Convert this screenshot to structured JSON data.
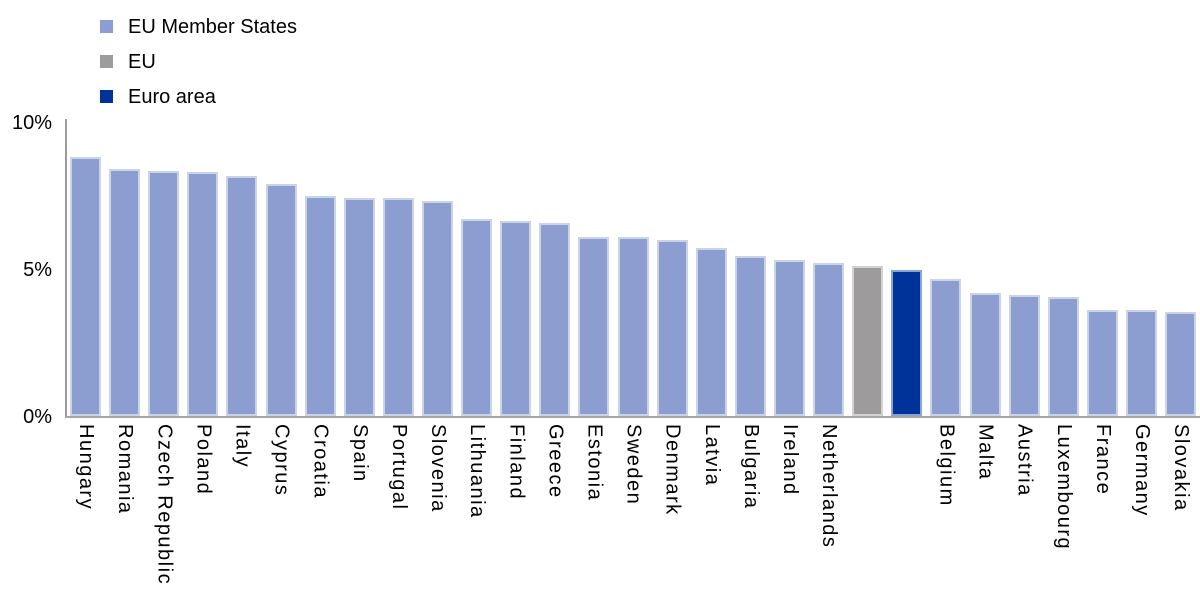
{
  "chart_data": {
    "type": "bar",
    "title": "",
    "xlabel": "",
    "ylabel": "",
    "unit": "%",
    "ylim": [
      0,
      10
    ],
    "grid": false,
    "legend_position": "top-left",
    "yticks": [
      {
        "value": 10,
        "label": "10%"
      },
      {
        "value": 5,
        "label": "5%"
      },
      {
        "value": 0,
        "label": "0%"
      }
    ],
    "series": [
      {
        "id": "member",
        "label": "EU Member States",
        "color": "#8C9ECF"
      },
      {
        "id": "eu",
        "label": "EU",
        "color": "#9D9B9B"
      },
      {
        "id": "euro_area",
        "label": "Euro area",
        "color": "#003399"
      }
    ],
    "bars": [
      {
        "name": "Hungary",
        "axis_label": "Hungary",
        "value": 8.8,
        "series": "member"
      },
      {
        "name": "Romania",
        "axis_label": "Romania",
        "value": 8.4,
        "series": "member"
      },
      {
        "name": "Czech Republic",
        "axis_label": "Czech Republic",
        "value": 8.35,
        "series": "member"
      },
      {
        "name": "Poland",
        "axis_label": "Poland",
        "value": 8.3,
        "series": "member"
      },
      {
        "name": "Italy",
        "axis_label": "Italy",
        "value": 8.15,
        "series": "member"
      },
      {
        "name": "Cyprus",
        "axis_label": "Cyprus",
        "value": 7.9,
        "series": "member"
      },
      {
        "name": "Croatia",
        "axis_label": "Croatia",
        "value": 7.5,
        "series": "member"
      },
      {
        "name": "Spain",
        "axis_label": "Spain",
        "value": 7.4,
        "series": "member"
      },
      {
        "name": "Portugal",
        "axis_label": "Portugal",
        "value": 7.4,
        "series": "member"
      },
      {
        "name": "Slovenia",
        "axis_label": "Slovenia",
        "value": 7.3,
        "series": "member"
      },
      {
        "name": "Lithuania",
        "axis_label": "Lithuania",
        "value": 6.7,
        "series": "member"
      },
      {
        "name": "Finland",
        "axis_label": "Finland",
        "value": 6.65,
        "series": "member"
      },
      {
        "name": "Greece",
        "axis_label": "Greece",
        "value": 6.55,
        "series": "member"
      },
      {
        "name": "Estonia",
        "axis_label": "Estonia",
        "value": 6.1,
        "series": "member"
      },
      {
        "name": "Sweden",
        "axis_label": "Sweden",
        "value": 6.1,
        "series": "member"
      },
      {
        "name": "Denmark",
        "axis_label": "Denmark",
        "value": 6.0,
        "series": "member"
      },
      {
        "name": "Latvia",
        "axis_label": "Latvia",
        "value": 5.7,
        "series": "member"
      },
      {
        "name": "Bulgaria",
        "axis_label": "Bulgaria",
        "value": 5.45,
        "series": "member"
      },
      {
        "name": "Ireland",
        "axis_label": "Ireland",
        "value": 5.3,
        "series": "member"
      },
      {
        "name": "Netherlands",
        "axis_label": "Netherlands",
        "value": 5.2,
        "series": "member"
      },
      {
        "name": "EU",
        "axis_label": "",
        "value": 5.1,
        "series": "eu"
      },
      {
        "name": "Euro area",
        "axis_label": "",
        "value": 4.95,
        "series": "euro_area"
      },
      {
        "name": "Belgium",
        "axis_label": "Belgium",
        "value": 4.65,
        "series": "member"
      },
      {
        "name": "Malta",
        "axis_label": "Malta",
        "value": 4.2,
        "series": "member"
      },
      {
        "name": "Austria",
        "axis_label": "Austria",
        "value": 4.1,
        "series": "member"
      },
      {
        "name": "Luxembourg",
        "axis_label": "Luxembourg",
        "value": 4.05,
        "series": "member"
      },
      {
        "name": "France",
        "axis_label": "France",
        "value": 3.6,
        "series": "member"
      },
      {
        "name": "Germany",
        "axis_label": "Germany",
        "value": 3.6,
        "series": "member"
      },
      {
        "name": "Slovakia",
        "axis_label": "Slovakia",
        "value": 3.55,
        "series": "member"
      }
    ]
  }
}
